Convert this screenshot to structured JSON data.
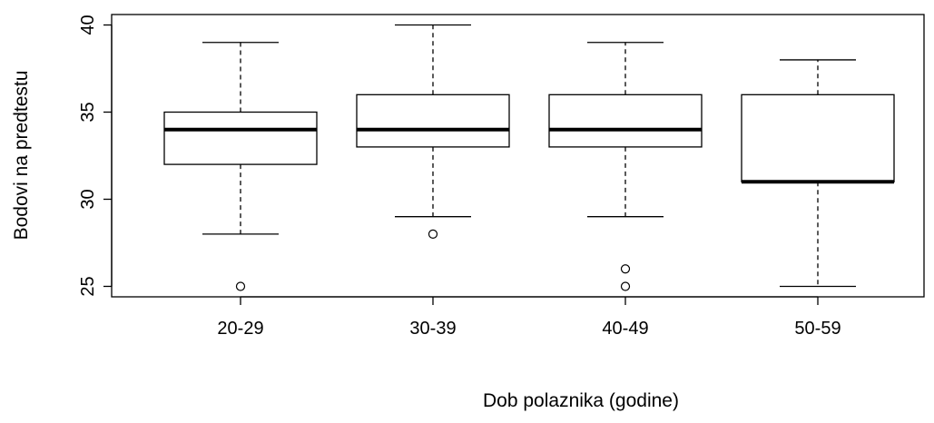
{
  "chart_data": {
    "type": "boxplot",
    "title": "",
    "xlabel": "Dob polaznika (godine)",
    "ylabel": "Bodovi na predtestu",
    "ylim": [
      24.4,
      40.6
    ],
    "yticks": [
      25,
      30,
      35,
      40
    ],
    "grid": false,
    "categories": [
      "20-29",
      "30-39",
      "40-49",
      "50-59"
    ],
    "boxes": [
      {
        "category": "20-29",
        "whisker_low": 28,
        "q1": 32,
        "median": 34,
        "q3": 35,
        "whisker_high": 39,
        "outliers": [
          25
        ]
      },
      {
        "category": "30-39",
        "whisker_low": 29,
        "q1": 33,
        "median": 34,
        "q3": 36,
        "whisker_high": 40,
        "outliers": [
          28
        ]
      },
      {
        "category": "40-49",
        "whisker_low": 29,
        "q1": 33,
        "median": 34,
        "q3": 36,
        "whisker_high": 39,
        "outliers": [
          26,
          25
        ]
      },
      {
        "category": "50-59",
        "whisker_low": 25,
        "q1": 31,
        "median": 31,
        "q3": 36,
        "whisker_high": 38,
        "outliers": []
      }
    ]
  }
}
